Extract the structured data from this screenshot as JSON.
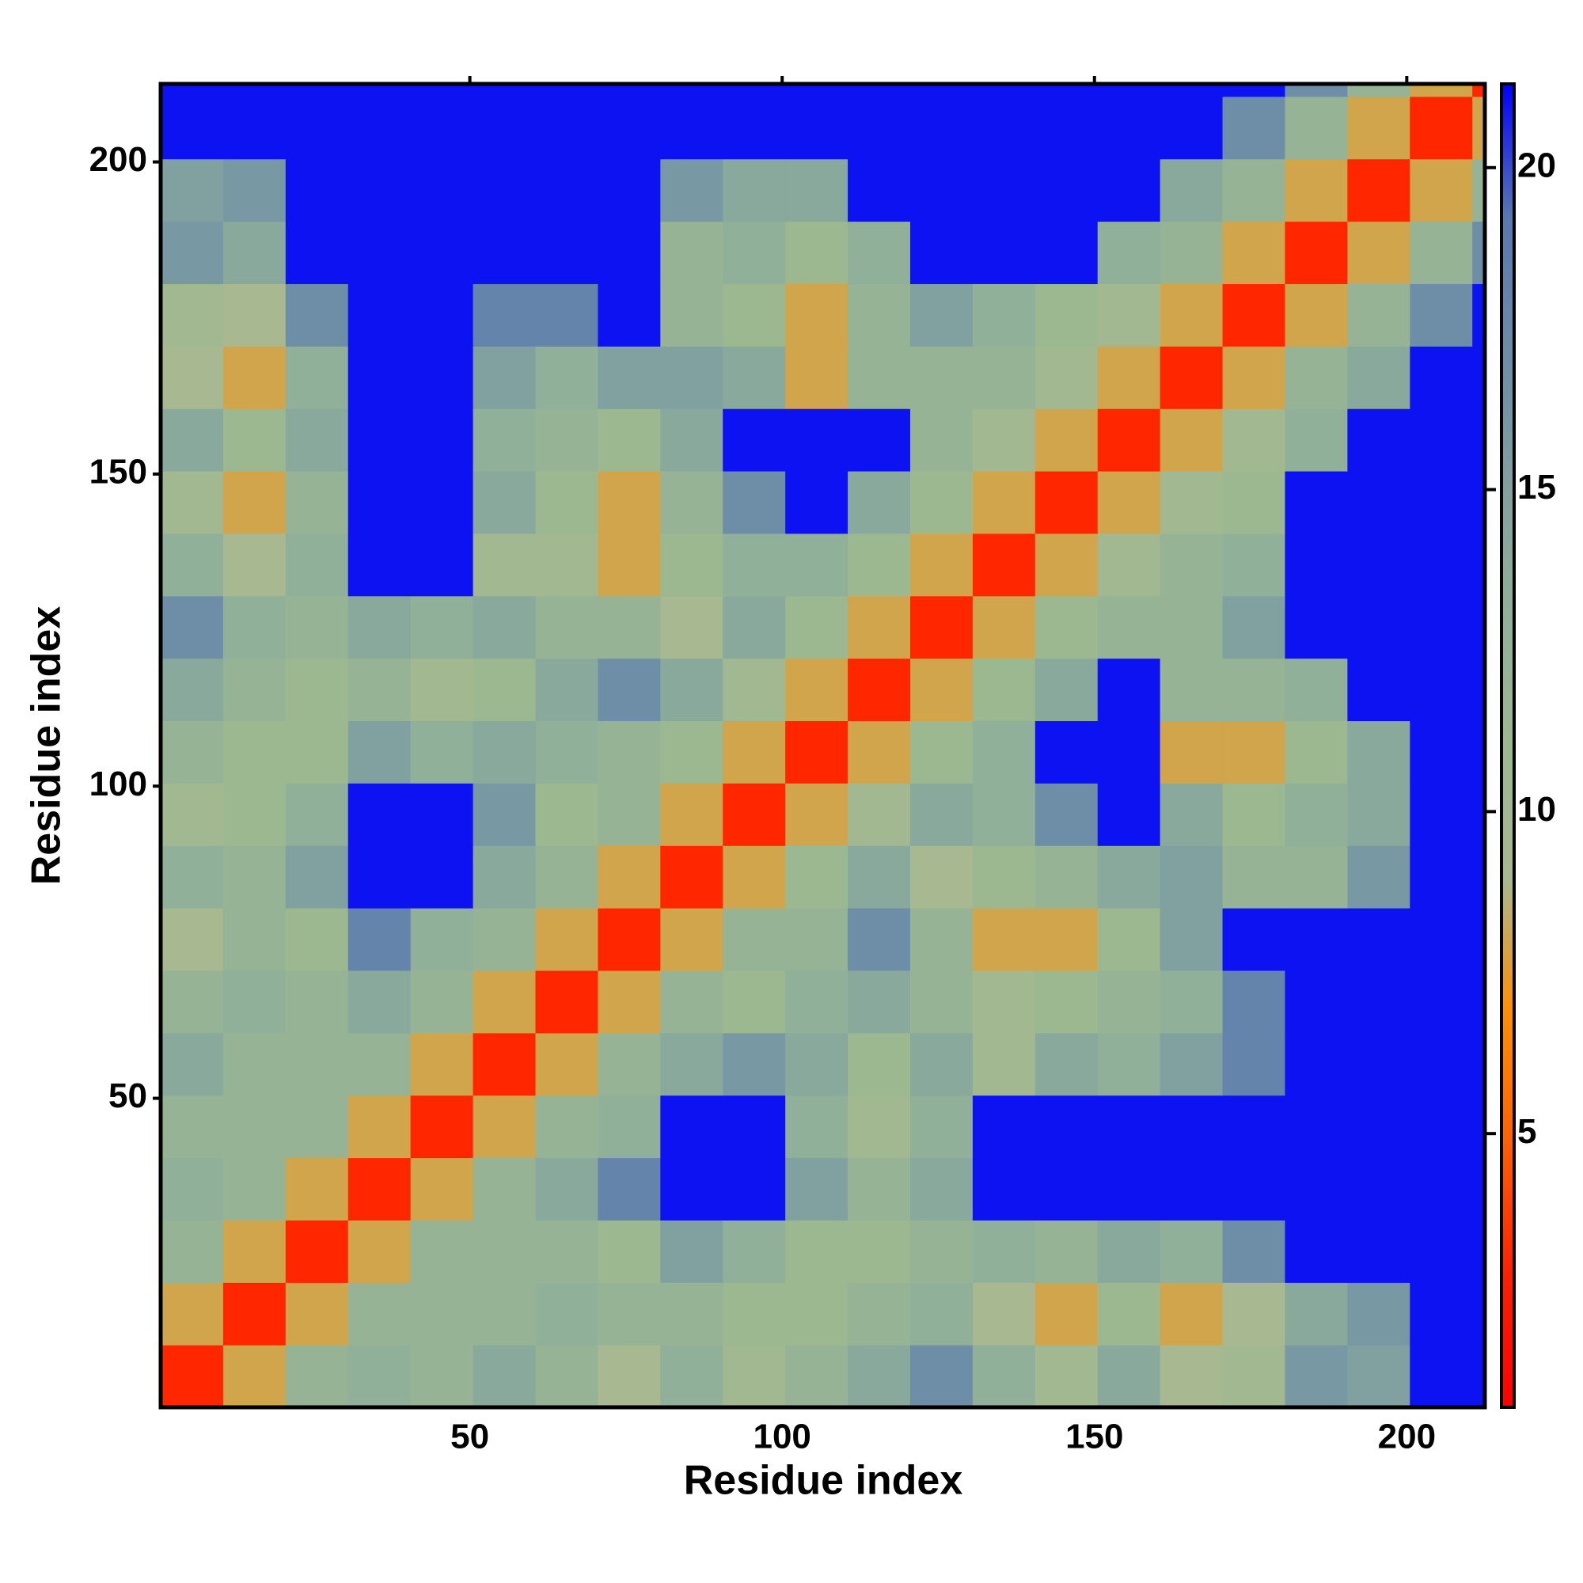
{
  "chart_data": {
    "type": "heatmap",
    "x_label": "Residue index",
    "y_label": "Residue index",
    "bins": [
      0.5,
      10.5,
      20.5,
      30.5,
      40.5,
      50.5,
      60.5,
      70.5,
      80.5,
      90.5,
      100.5,
      110.5,
      120.5,
      130.5,
      140.5,
      150.5,
      160.5,
      170.5,
      180.5,
      190.5,
      200.5,
      210.5,
      212.5
    ],
    "values": [
      [
        3,
        8,
        12,
        13,
        12,
        14,
        12,
        9,
        13,
        10,
        12,
        14,
        17,
        13,
        10,
        14,
        9,
        10,
        16,
        15,
        21,
        21
      ],
      [
        8,
        3,
        8,
        12,
        12,
        12,
        13,
        12,
        12,
        11,
        11,
        12,
        13,
        9,
        8,
        11,
        8,
        9,
        14,
        16,
        21,
        21
      ],
      [
        12,
        8,
        3,
        8,
        12,
        12,
        12,
        11,
        15,
        13,
        11,
        11,
        12,
        13,
        12,
        14,
        13,
        17,
        21,
        21,
        21,
        21
      ],
      [
        13,
        12,
        8,
        3,
        8,
        12,
        14,
        18,
        21,
        21,
        15,
        12,
        14,
        21,
        21,
        21,
        21,
        21,
        21,
        21,
        21,
        21
      ],
      [
        12,
        12,
        12,
        8,
        3,
        8,
        12,
        13,
        21,
        21,
        13,
        10,
        13,
        21,
        21,
        21,
        21,
        21,
        21,
        21,
        21,
        21
      ],
      [
        14,
        12,
        12,
        12,
        8,
        3,
        8,
        12,
        14,
        16,
        14,
        11,
        14,
        10,
        14,
        13,
        15,
        18,
        21,
        21,
        21,
        21
      ],
      [
        12,
        13,
        12,
        14,
        12,
        8,
        3,
        8,
        12,
        11,
        13,
        14,
        12,
        10,
        11,
        12,
        13,
        18,
        21,
        21,
        21,
        21
      ],
      [
        9,
        12,
        11,
        18,
        13,
        12,
        8,
        3,
        8,
        12,
        12,
        17,
        12,
        8,
        8,
        11,
        15,
        21,
        21,
        21,
        21,
        21
      ],
      [
        13,
        12,
        15,
        21,
        21,
        14,
        12,
        8,
        3,
        8,
        11,
        14,
        9,
        11,
        12,
        14,
        15,
        12,
        12,
        16,
        21,
        21
      ],
      [
        10,
        11,
        13,
        21,
        21,
        16,
        11,
        12,
        8,
        3,
        8,
        10,
        14,
        13,
        17,
        21,
        14,
        11,
        13,
        14,
        21,
        21
      ],
      [
        12,
        11,
        11,
        15,
        13,
        14,
        13,
        12,
        11,
        8,
        3,
        8,
        11,
        13,
        21,
        21,
        8,
        8,
        11,
        14,
        21,
        21
      ],
      [
        14,
        12,
        11,
        12,
        10,
        11,
        14,
        17,
        14,
        10,
        8,
        3,
        8,
        11,
        14,
        21,
        12,
        12,
        13,
        21,
        21,
        21
      ],
      [
        17,
        13,
        12,
        14,
        13,
        14,
        12,
        12,
        9,
        14,
        11,
        8,
        3,
        8,
        11,
        12,
        12,
        15,
        21,
        21,
        21,
        21
      ],
      [
        13,
        9,
        13,
        21,
        21,
        10,
        10,
        8,
        11,
        13,
        13,
        11,
        8,
        3,
        8,
        10,
        12,
        13,
        21,
        21,
        21,
        21
      ],
      [
        10,
        8,
        12,
        21,
        21,
        14,
        11,
        8,
        12,
        17,
        21,
        14,
        11,
        8,
        3,
        8,
        10,
        11,
        21,
        21,
        21,
        21
      ],
      [
        14,
        11,
        14,
        21,
        21,
        13,
        12,
        11,
        14,
        21,
        21,
        21,
        12,
        10,
        8,
        3,
        8,
        10,
        13,
        21,
        21,
        21
      ],
      [
        9,
        8,
        13,
        21,
        21,
        15,
        13,
        15,
        15,
        14,
        8,
        12,
        12,
        12,
        10,
        8,
        3,
        8,
        12,
        14,
        21,
        21
      ],
      [
        10,
        9,
        17,
        21,
        21,
        18,
        18,
        21,
        12,
        11,
        8,
        12,
        15,
        13,
        11,
        10,
        8,
        3,
        8,
        12,
        17,
        21
      ],
      [
        16,
        14,
        21,
        21,
        21,
        21,
        21,
        21,
        12,
        13,
        11,
        13,
        21,
        21,
        21,
        13,
        12,
        8,
        3,
        8,
        12,
        17
      ],
      [
        15,
        16,
        21,
        21,
        21,
        21,
        21,
        21,
        16,
        14,
        14,
        21,
        21,
        21,
        21,
        21,
        14,
        12,
        8,
        3,
        8,
        12
      ],
      [
        21,
        21,
        21,
        21,
        21,
        21,
        21,
        21,
        21,
        21,
        21,
        21,
        21,
        21,
        21,
        21,
        21,
        17,
        12,
        8,
        3,
        8
      ],
      [
        21,
        21,
        21,
        21,
        21,
        21,
        21,
        21,
        21,
        21,
        21,
        21,
        21,
        21,
        21,
        21,
        21,
        21,
        17,
        12,
        8,
        3
      ]
    ],
    "xlim": [
      0.5,
      212.5
    ],
    "ylim": [
      0.5,
      212.5
    ],
    "xticks": [
      50,
      100,
      150,
      200
    ],
    "yticks": [
      50,
      100,
      150,
      200
    ],
    "colorbar_lim": [
      0.75,
      21.3
    ],
    "colorbar_ticks": [
      5,
      10,
      15,
      20
    ],
    "colors": [
      "#ff0000",
      "#ff2000",
      "#ff6000",
      "#ff9000",
      "#a8b890",
      "#9cb890",
      "#90b09a",
      "#80a0a0",
      "#6c8ca8",
      "#5878b0",
      "#0000ff"
    ]
  }
}
